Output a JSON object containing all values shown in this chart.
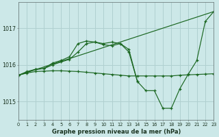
{
  "title": "Graphe pression niveau de la mer (hPa)",
  "bg_color": "#cce8e8",
  "grid_color": "#b0d0d0",
  "line_color": "#1a6620",
  "xmin": 0,
  "xmax": 23,
  "ymin": 1014.5,
  "ymax": 1017.7,
  "yticks": [
    1015,
    1016,
    1017
  ],
  "series_straight": [
    [
      0,
      1015.72
    ],
    [
      23,
      1017.45
    ]
  ],
  "series_flat": [
    [
      0,
      1015.72
    ],
    [
      1,
      1015.78
    ],
    [
      2,
      1015.82
    ],
    [
      3,
      1015.83
    ],
    [
      4,
      1015.84
    ],
    [
      5,
      1015.84
    ],
    [
      6,
      1015.83
    ],
    [
      7,
      1015.82
    ],
    [
      8,
      1015.8
    ],
    [
      9,
      1015.78
    ],
    [
      10,
      1015.76
    ],
    [
      11,
      1015.74
    ],
    [
      12,
      1015.72
    ],
    [
      13,
      1015.7
    ],
    [
      14,
      1015.7
    ],
    [
      15,
      1015.7
    ],
    [
      16,
      1015.7
    ],
    [
      17,
      1015.7
    ],
    [
      18,
      1015.7
    ],
    [
      19,
      1015.72
    ],
    [
      20,
      1015.73
    ],
    [
      21,
      1015.74
    ],
    [
      22,
      1015.75
    ],
    [
      23,
      1015.76
    ]
  ],
  "series_main": [
    [
      0,
      1015.72
    ],
    [
      1,
      1015.82
    ],
    [
      2,
      1015.88
    ],
    [
      3,
      1015.9
    ],
    [
      4,
      1016.0
    ],
    [
      5,
      1016.08
    ],
    [
      6,
      1016.15
    ],
    [
      7,
      1016.35
    ],
    [
      8,
      1016.58
    ],
    [
      9,
      1016.62
    ],
    [
      10,
      1016.55
    ],
    [
      11,
      1016.52
    ],
    [
      12,
      1016.58
    ],
    [
      13,
      1016.42
    ],
    [
      14,
      1015.55
    ],
    [
      15,
      1015.3
    ],
    [
      16,
      1015.3
    ],
    [
      17,
      1014.82
    ],
    [
      18,
      1014.82
    ],
    [
      19,
      1015.35
    ],
    [
      20,
      1015.75
    ],
    [
      21,
      1016.12
    ],
    [
      22,
      1017.18
    ],
    [
      23,
      1017.45
    ]
  ],
  "series_extra": [
    [
      0,
      1015.72
    ],
    [
      2,
      1015.88
    ],
    [
      3,
      1015.9
    ],
    [
      4,
      1016.05
    ],
    [
      5,
      1016.12
    ],
    [
      6,
      1016.22
    ],
    [
      7,
      1016.58
    ],
    [
      8,
      1016.65
    ],
    [
      9,
      1016.62
    ],
    [
      10,
      1016.58
    ],
    [
      11,
      1016.62
    ],
    [
      12,
      1016.58
    ],
    [
      13,
      1016.35
    ],
    [
      14,
      1015.55
    ]
  ]
}
